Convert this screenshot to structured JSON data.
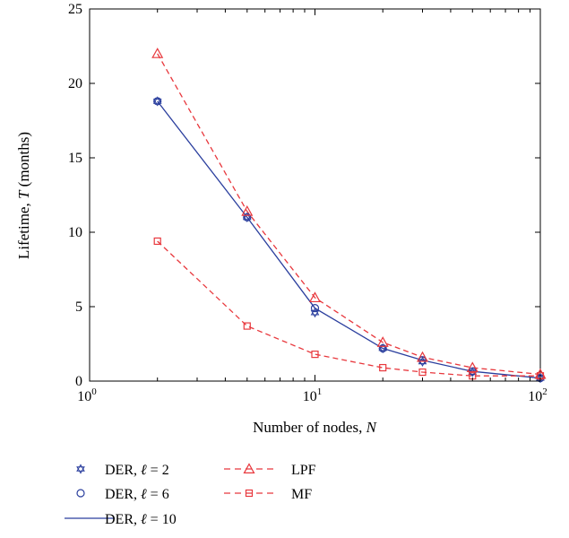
{
  "chart_data": {
    "type": "line",
    "xlabel": "Number of nodes, N",
    "ylabel": "Lifetime, T (months)",
    "xscale": "log",
    "xlim": [
      1,
      100
    ],
    "ylim": [
      0,
      25
    ],
    "x_ticks": [
      {
        "value": 1,
        "base": "10",
        "exp": "0"
      },
      {
        "value": 10,
        "base": "10",
        "exp": "1"
      },
      {
        "value": 100,
        "base": "10",
        "exp": "2"
      }
    ],
    "y_ticks": [
      0,
      5,
      10,
      15,
      20,
      25
    ],
    "x": [
      2,
      5,
      10,
      20,
      30,
      50,
      100
    ],
    "series": [
      {
        "name": "DER, ℓ = 2",
        "marker": "star",
        "line": "none",
        "color": "#2b3f9e",
        "values": [
          18.8,
          11.0,
          4.6,
          2.2,
          1.3,
          0.6,
          0.2
        ]
      },
      {
        "name": "DER, ℓ = 6",
        "marker": "circle",
        "line": "none",
        "color": "#2b3f9e",
        "values": [
          18.8,
          11.0,
          4.9,
          2.2,
          1.4,
          0.65,
          0.2
        ]
      },
      {
        "name": "DER, ℓ = 10",
        "marker": "none",
        "line": "solid",
        "color": "#2b3f9e",
        "values": [
          18.8,
          11.0,
          4.9,
          2.2,
          1.4,
          0.65,
          0.2
        ]
      },
      {
        "name": "LPF",
        "marker": "triangle",
        "line": "dashed",
        "color": "#e8383d",
        "values": [
          22.0,
          11.4,
          5.6,
          2.6,
          1.6,
          0.9,
          0.45
        ]
      },
      {
        "name": "MF",
        "marker": "square",
        "line": "dashed",
        "color": "#e8383d",
        "values": [
          9.4,
          3.7,
          1.8,
          0.9,
          0.6,
          0.35,
          0.35
        ]
      }
    ],
    "grid": false,
    "legend": {
      "placement": "bottom",
      "columns": [
        [
          "DER, ℓ = 2",
          "DER, ℓ = 6",
          "DER, ℓ = 10"
        ],
        [
          "LPF",
          "MF"
        ]
      ]
    }
  }
}
